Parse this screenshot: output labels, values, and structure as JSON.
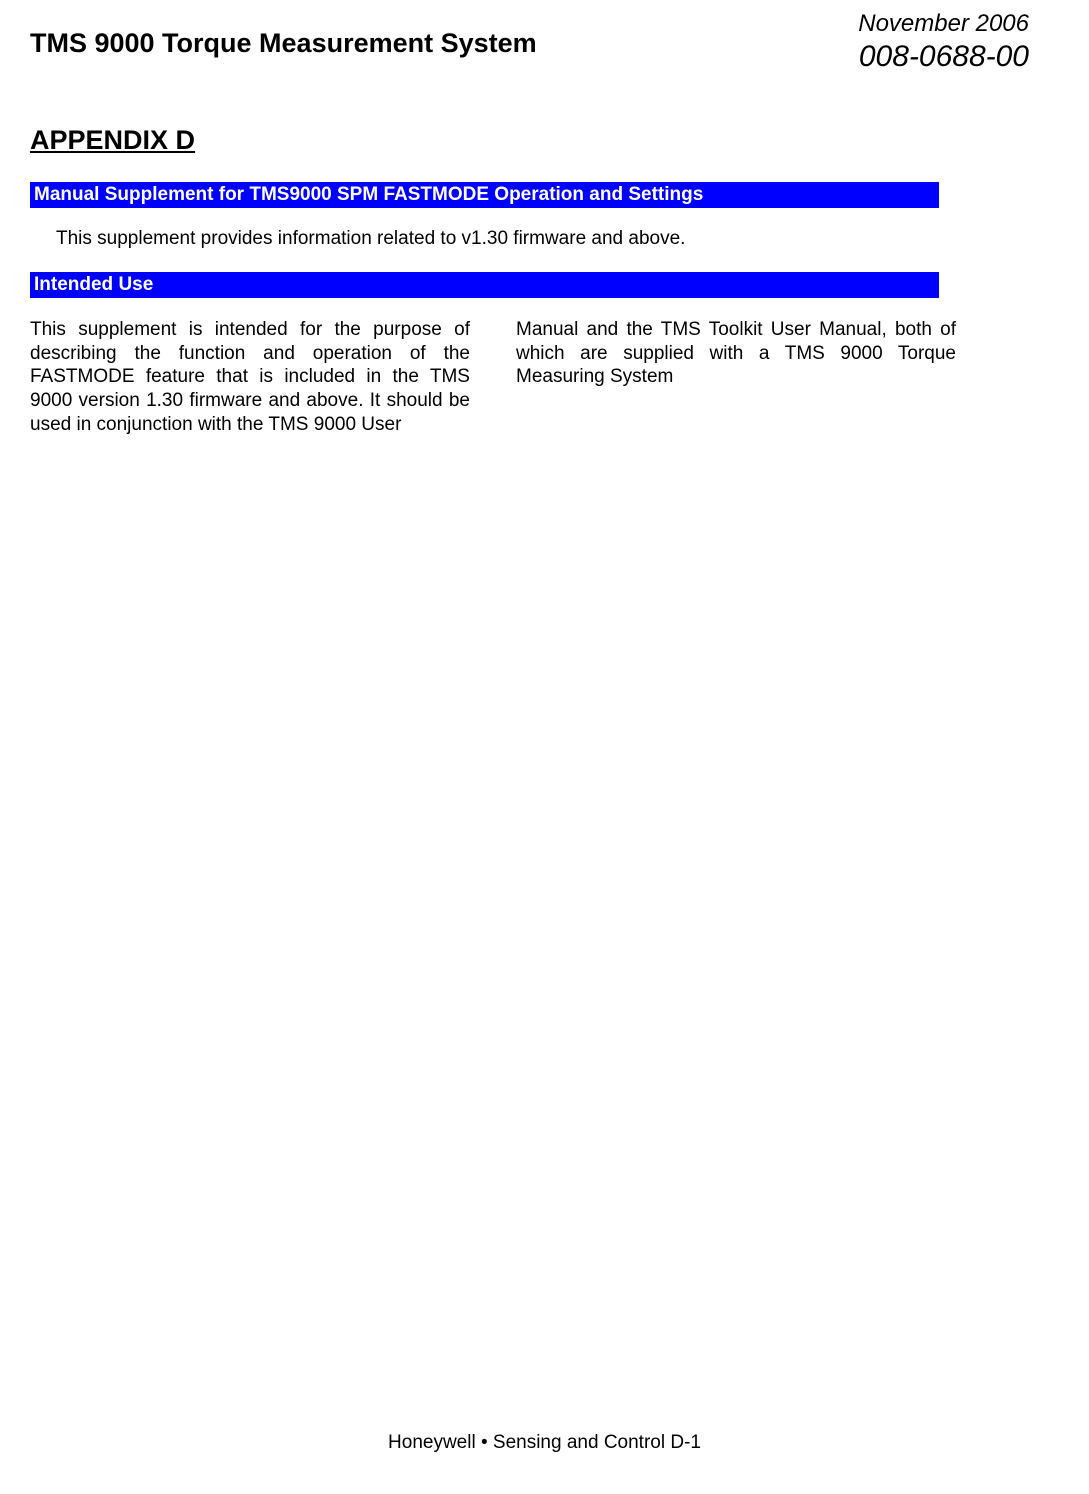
{
  "header": {
    "title": "TMS 9000 Torque Measurement System",
    "date": "November 2006",
    "doc_number": "008-0688-00"
  },
  "appendix_label": "APPENDIX D",
  "sections": {
    "bar1": "Manual Supplement for TMS9000 SPM FASTMODE Operation and Settings",
    "intro": "This supplement provides information related to v1.30 firmware and above.",
    "bar2": "Intended Use",
    "body_left": "This supplement is intended for the purpose of describing the function and operation of the FASTMODE feature that is included in the TMS 9000 version 1.30 firmware and above. It should be used in conjunction with the TMS 9000 User",
    "body_right": "Manual and the TMS Toolkit User Manual, both of which are supplied with a TMS 9000 Torque Measuring System"
  },
  "footer": {
    "text": "Honeywell • Sensing and Control   D-1"
  },
  "styling": {
    "page_background": "#ffffff",
    "text_color": "#000000",
    "section_bar_bg": "#0000ff",
    "section_bar_text": "#ffffff",
    "title_fontsize_pt": 20,
    "appendix_fontsize_pt": 20,
    "header_date_fontsize_pt": 18,
    "header_code_fontsize_pt": 22,
    "section_bar_fontsize_pt": 14,
    "body_fontsize_pt": 14,
    "font_family": "Arial"
  }
}
